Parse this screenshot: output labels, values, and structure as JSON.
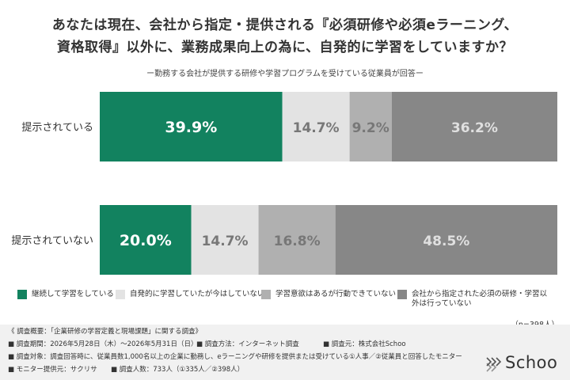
{
  "title_line1": "あなたは現在、会社から指定・提供される『必須研修や必須eラーニング、",
  "title_line2": "資格取得』以外に、業務成果向上の為に、自発的に学習をしていますか？",
  "subtitle": "ー勤務する会社が提供する研修や学習プログラムを受けている従業員が回答ー",
  "colors": {
    "continuous": "#12825f",
    "stopped": "#e3e3e3",
    "motivated": "#b0b0b0",
    "none": "#878787"
  },
  "chart_data": {
    "type": "bar",
    "orientation": "horizontal",
    "stacked": true,
    "categories": [
      "提示されている",
      "提示されていない"
    ],
    "series": [
      {
        "name": "継続して学習をしている",
        "values": [
          39.9,
          20.0
        ],
        "labels": [
          "39.9%",
          "20.0%"
        ]
      },
      {
        "name": "自発的に学習していたが今はしていない",
        "values": [
          14.7,
          14.7
        ],
        "labels": [
          "14.7%",
          "14.7%"
        ]
      },
      {
        "name": "学習意欲はあるが行動できていない",
        "values": [
          9.2,
          16.8
        ],
        "labels": [
          "9.2%",
          "16.8%"
        ]
      },
      {
        "name": "会社から指定された必須の研修・学習以外は行っていない",
        "values": [
          36.2,
          48.5
        ],
        "labels": [
          "36.2%",
          "48.5%"
        ]
      }
    ],
    "xlim": [
      0,
      100
    ],
    "legend_position": "bottom",
    "grid": false
  },
  "n_note": "（n=398人）",
  "footer": {
    "survey_title": "《 調査概要：「企業研修の学習定義と現場課題」に関する調査》",
    "period": "■ 調査期間：2026年5月28日（木）～2026年5月31日（日）",
    "method": "■ 調査方法：インターネット調査",
    "source": "■ 調査元：株式会社Schoo",
    "target": "■ 調査対象：調査回答時に、従業員数1,000名以上の企業に勤務し、eラーニングや研修を提供または受けている①人事／②従業員と回答したモニター",
    "monitor": "■ モニター提供元：サクリサ",
    "count": "■ 調査人数：733人（①335人／②398人）",
    "logo": "Schoo"
  }
}
